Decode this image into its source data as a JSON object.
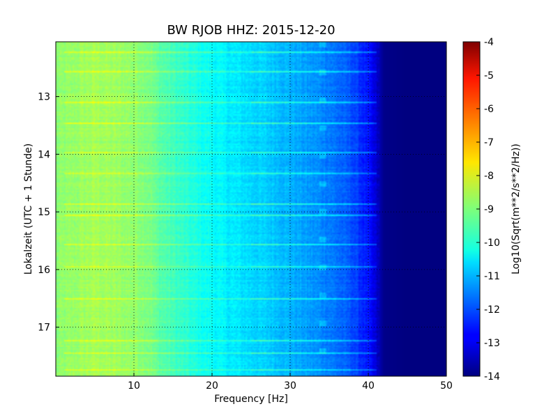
{
  "chart_data": {
    "type": "heatmap",
    "title": "BW RJOB HHZ: 2015-12-20",
    "xlabel": "Frequency [Hz]",
    "ylabel": "Lokalzeit (UTC + 1 Stunde)",
    "colorbar_label": "Log10(Sqrt(m**2/s**2/Hz))",
    "xlim": [
      0,
      50
    ],
    "ylim": [
      12.05,
      17.85
    ],
    "y_inverted": true,
    "x_ticks": [
      10,
      20,
      30,
      40,
      50
    ],
    "y_ticks": [
      13,
      14,
      15,
      16,
      17
    ],
    "color_range": [
      -14,
      -4
    ],
    "colorbar_ticks": [
      -4,
      -5,
      -6,
      -7,
      -8,
      -9,
      -10,
      -11,
      -12,
      -13,
      -14
    ],
    "colormap": "jet",
    "grid": true,
    "spectral_profile": {
      "frequency_hz": [
        0,
        5,
        10,
        12,
        13,
        15,
        18,
        20,
        22,
        25,
        28,
        30,
        33,
        35,
        38,
        40,
        41,
        42,
        45,
        50
      ],
      "log10_amplitude": [
        -8.9,
        -8.6,
        -8.8,
        -9.0,
        -9.3,
        -9.6,
        -10.0,
        -10.2,
        -10.4,
        -10.6,
        -10.8,
        -11.0,
        -11.3,
        -11.5,
        -12.0,
        -12.6,
        -13.2,
        -13.9,
        -14.0,
        -14.0
      ]
    },
    "noise_bands_hour": [
      12.23,
      12.55,
      13.1,
      13.45,
      13.95,
      14.33,
      14.85,
      15.05,
      15.55,
      15.95,
      16.5,
      17.22,
      17.45,
      17.73
    ]
  }
}
